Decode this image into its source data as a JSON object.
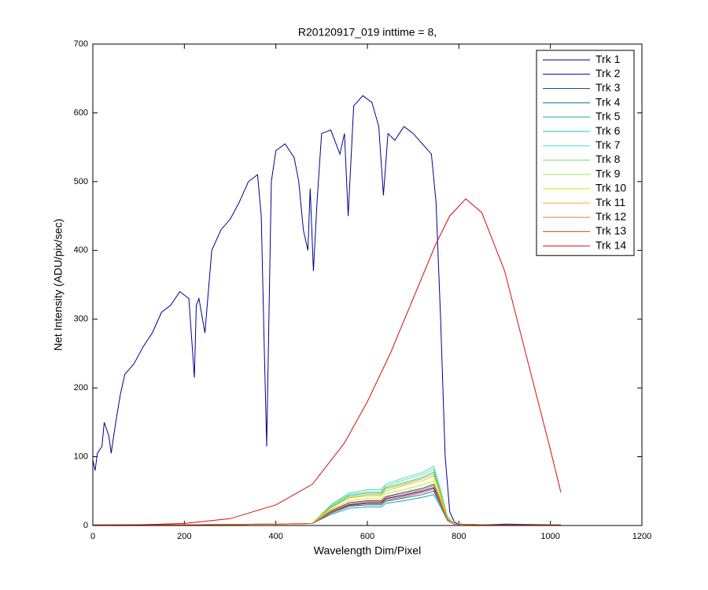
{
  "chart_data": {
    "type": "line",
    "title": "R20120917_019 inttime = 8,",
    "xlabel": "Wavelength Dim/Pixel",
    "ylabel": "Net Intensity (ADU/pix/sec)",
    "xlim": [
      0,
      1200
    ],
    "xticks": [
      0,
      200,
      400,
      600,
      800,
      1000,
      1200
    ],
    "ylim": [
      0,
      700
    ],
    "yticks": [
      0,
      100,
      200,
      300,
      400,
      500,
      600,
      700
    ],
    "legend": "upper-right",
    "series": [
      {
        "name": "Trk 1",
        "color": "#00008f",
        "x": [
          0,
          5,
          10,
          20,
          25,
          35,
          40,
          50,
          60,
          70,
          90,
          110,
          130,
          150,
          170,
          190,
          210,
          222,
          226,
          232,
          245,
          260,
          280,
          300,
          320,
          340,
          360,
          368,
          375,
          380,
          390,
          400,
          420,
          440,
          450,
          460,
          470,
          475,
          482,
          490,
          500,
          520,
          540,
          550,
          558,
          570,
          590,
          610,
          625,
          635,
          645,
          660,
          680,
          700,
          720,
          740,
          750,
          760,
          770,
          780,
          790,
          800,
          850,
          900,
          1023
        ],
        "values": [
          95,
          80,
          105,
          115,
          150,
          130,
          105,
          150,
          190,
          220,
          235,
          260,
          280,
          310,
          320,
          340,
          330,
          215,
          320,
          330,
          280,
          400,
          430,
          445,
          470,
          500,
          510,
          450,
          250,
          115,
          500,
          545,
          555,
          535,
          500,
          430,
          400,
          490,
          370,
          470,
          570,
          575,
          540,
          570,
          450,
          610,
          625,
          615,
          580,
          480,
          570,
          560,
          580,
          570,
          555,
          540,
          470,
          300,
          100,
          20,
          5,
          2,
          1,
          2,
          1
        ]
      },
      {
        "name": "Trk 2",
        "color": "#0000a8",
        "x": [
          0,
          200,
          400,
          480,
          520,
          560,
          600,
          630,
          640,
          680,
          720,
          745,
          760,
          775,
          790,
          850,
          1023
        ],
        "values": [
          1,
          1,
          2,
          3,
          19,
          30,
          33,
          33,
          39,
          44,
          50,
          55,
          33,
          8,
          2,
          1,
          1
        ]
      },
      {
        "name": "Trk 3",
        "color": "#1a4f9c",
        "x": [
          0,
          200,
          400,
          480,
          520,
          560,
          600,
          630,
          640,
          680,
          720,
          745,
          760,
          775,
          790,
          850,
          1023
        ],
        "values": [
          1,
          1,
          2,
          3,
          21,
          33,
          36,
          36,
          42,
          48,
          54,
          60,
          36,
          9,
          2,
          1,
          1
        ]
      },
      {
        "name": "Trk 4",
        "color": "#0d6f8f",
        "x": [
          0,
          200,
          400,
          480,
          520,
          560,
          600,
          630,
          640,
          680,
          720,
          745,
          760,
          775,
          790,
          850,
          1023
        ],
        "values": [
          1,
          1,
          2,
          3,
          18,
          28,
          30,
          30,
          35,
          40,
          45,
          50,
          30,
          8,
          2,
          1,
          1
        ]
      },
      {
        "name": "Trk 5",
        "color": "#10a5b5",
        "x": [
          0,
          200,
          400,
          480,
          520,
          560,
          600,
          630,
          640,
          680,
          720,
          745,
          760,
          775,
          790,
          850,
          1023
        ],
        "values": [
          1,
          1,
          2,
          3,
          16,
          25,
          27,
          27,
          32,
          36,
          41,
          45,
          27,
          7,
          2,
          1,
          1
        ]
      },
      {
        "name": "Trk 6",
        "color": "#20c8c8",
        "x": [
          0,
          200,
          400,
          480,
          520,
          560,
          600,
          630,
          640,
          680,
          720,
          745,
          760,
          775,
          790,
          850,
          1023
        ],
        "values": [
          1,
          1,
          2,
          3,
          27,
          43,
          47,
          47,
          55,
          62,
          70,
          78,
          47,
          12,
          2,
          1,
          1
        ]
      },
      {
        "name": "Trk 7",
        "color": "#40d8d0",
        "x": [
          0,
          200,
          400,
          480,
          520,
          560,
          600,
          630,
          640,
          680,
          720,
          745,
          760,
          775,
          790,
          850,
          1023
        ],
        "values": [
          1,
          1,
          2,
          3,
          30,
          47,
          52,
          52,
          60,
          69,
          77,
          86,
          52,
          13,
          2,
          1,
          1
        ]
      },
      {
        "name": "Trk 8",
        "color": "#70e070",
        "x": [
          0,
          200,
          400,
          480,
          520,
          560,
          600,
          630,
          640,
          680,
          720,
          745,
          760,
          775,
          790,
          850,
          1023
        ],
        "values": [
          1,
          1,
          2,
          3,
          29,
          45,
          49,
          49,
          57,
          66,
          74,
          82,
          49,
          12,
          2,
          1,
          1
        ]
      },
      {
        "name": "Trk 9",
        "color": "#b0e040",
        "x": [
          0,
          200,
          400,
          480,
          520,
          560,
          600,
          630,
          640,
          680,
          720,
          745,
          760,
          775,
          790,
          850,
          1023
        ],
        "values": [
          1,
          1,
          2,
          3,
          25,
          40,
          43,
          43,
          50,
          58,
          65,
          72,
          43,
          11,
          2,
          1,
          1
        ]
      },
      {
        "name": "Trk 10",
        "color": "#e0e000",
        "x": [
          0,
          200,
          400,
          480,
          520,
          560,
          600,
          630,
          640,
          680,
          720,
          745,
          760,
          775,
          790,
          850,
          1023
        ],
        "values": [
          1,
          1,
          2,
          3,
          23,
          36,
          39,
          39,
          46,
          52,
          59,
          65,
          39,
          10,
          2,
          1,
          1
        ]
      },
      {
        "name": "Trk 11",
        "color": "#f0b020",
        "x": [
          0,
          200,
          400,
          480,
          520,
          560,
          600,
          630,
          640,
          680,
          720,
          745,
          760,
          775,
          790,
          850,
          1023
        ],
        "values": [
          1,
          1,
          2,
          3,
          26,
          41,
          45,
          45,
          53,
          60,
          68,
          75,
          45,
          11,
          2,
          1,
          1
        ]
      },
      {
        "name": "Trk 12",
        "color": "#f08040",
        "x": [
          0,
          200,
          400,
          480,
          520,
          560,
          600,
          630,
          640,
          680,
          720,
          745,
          760,
          775,
          790,
          850,
          1023
        ],
        "values": [
          1,
          1,
          2,
          3,
          20,
          32,
          35,
          35,
          41,
          46,
          52,
          58,
          35,
          9,
          2,
          1,
          1
        ]
      },
      {
        "name": "Trk 13",
        "color": "#e05020",
        "x": [
          0,
          200,
          400,
          480,
          520,
          560,
          600,
          630,
          640,
          680,
          720,
          745,
          760,
          775,
          790,
          850,
          1023
        ],
        "values": [
          1,
          1,
          2,
          3,
          19,
          29,
          32,
          32,
          37,
          42,
          48,
          53,
          32,
          8,
          2,
          1,
          1
        ]
      },
      {
        "name": "Trk 14",
        "color": "#d01010",
        "x": [
          0,
          100,
          200,
          300,
          400,
          480,
          550,
          600,
          650,
          700,
          750,
          780,
          815,
          850,
          900,
          950,
          1000,
          1023
        ],
        "values": [
          0,
          1,
          3,
          10,
          30,
          60,
          120,
          180,
          250,
          330,
          410,
          450,
          475,
          455,
          370,
          240,
          110,
          48
        ]
      }
    ]
  }
}
